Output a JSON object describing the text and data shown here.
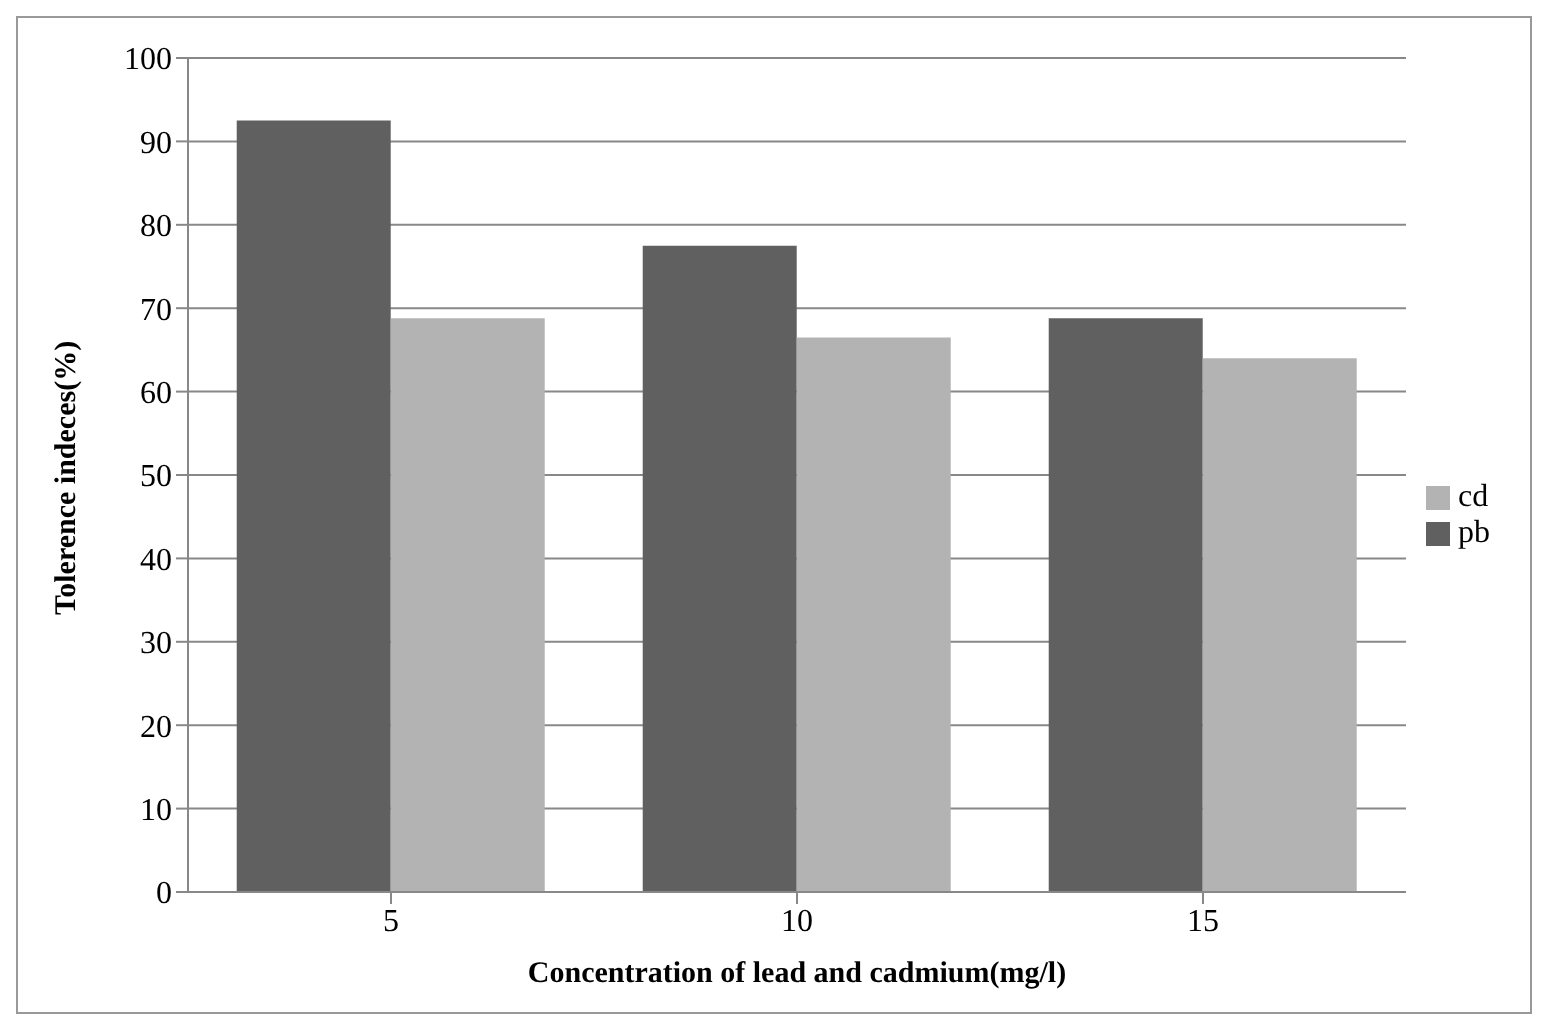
{
  "chart_data": {
    "type": "bar",
    "xlabel": "Concentration of lead and cadmium(mg/l)",
    "ylabel": "Tolerence indeces(%)",
    "categories": [
      "5",
      "10",
      "15"
    ],
    "series": [
      {
        "name": "pb",
        "color": "#606060",
        "values": [
          92.5,
          77.5,
          68.8
        ]
      },
      {
        "name": "cd",
        "color": "#b3b3b3",
        "values": [
          68.8,
          66.5,
          64
        ]
      }
    ],
    "ylim": [
      0,
      100
    ],
    "yticks": [
      0,
      10,
      20,
      30,
      40,
      50,
      60,
      70,
      80,
      90,
      100
    ],
    "grid": "y",
    "legend": "right"
  }
}
